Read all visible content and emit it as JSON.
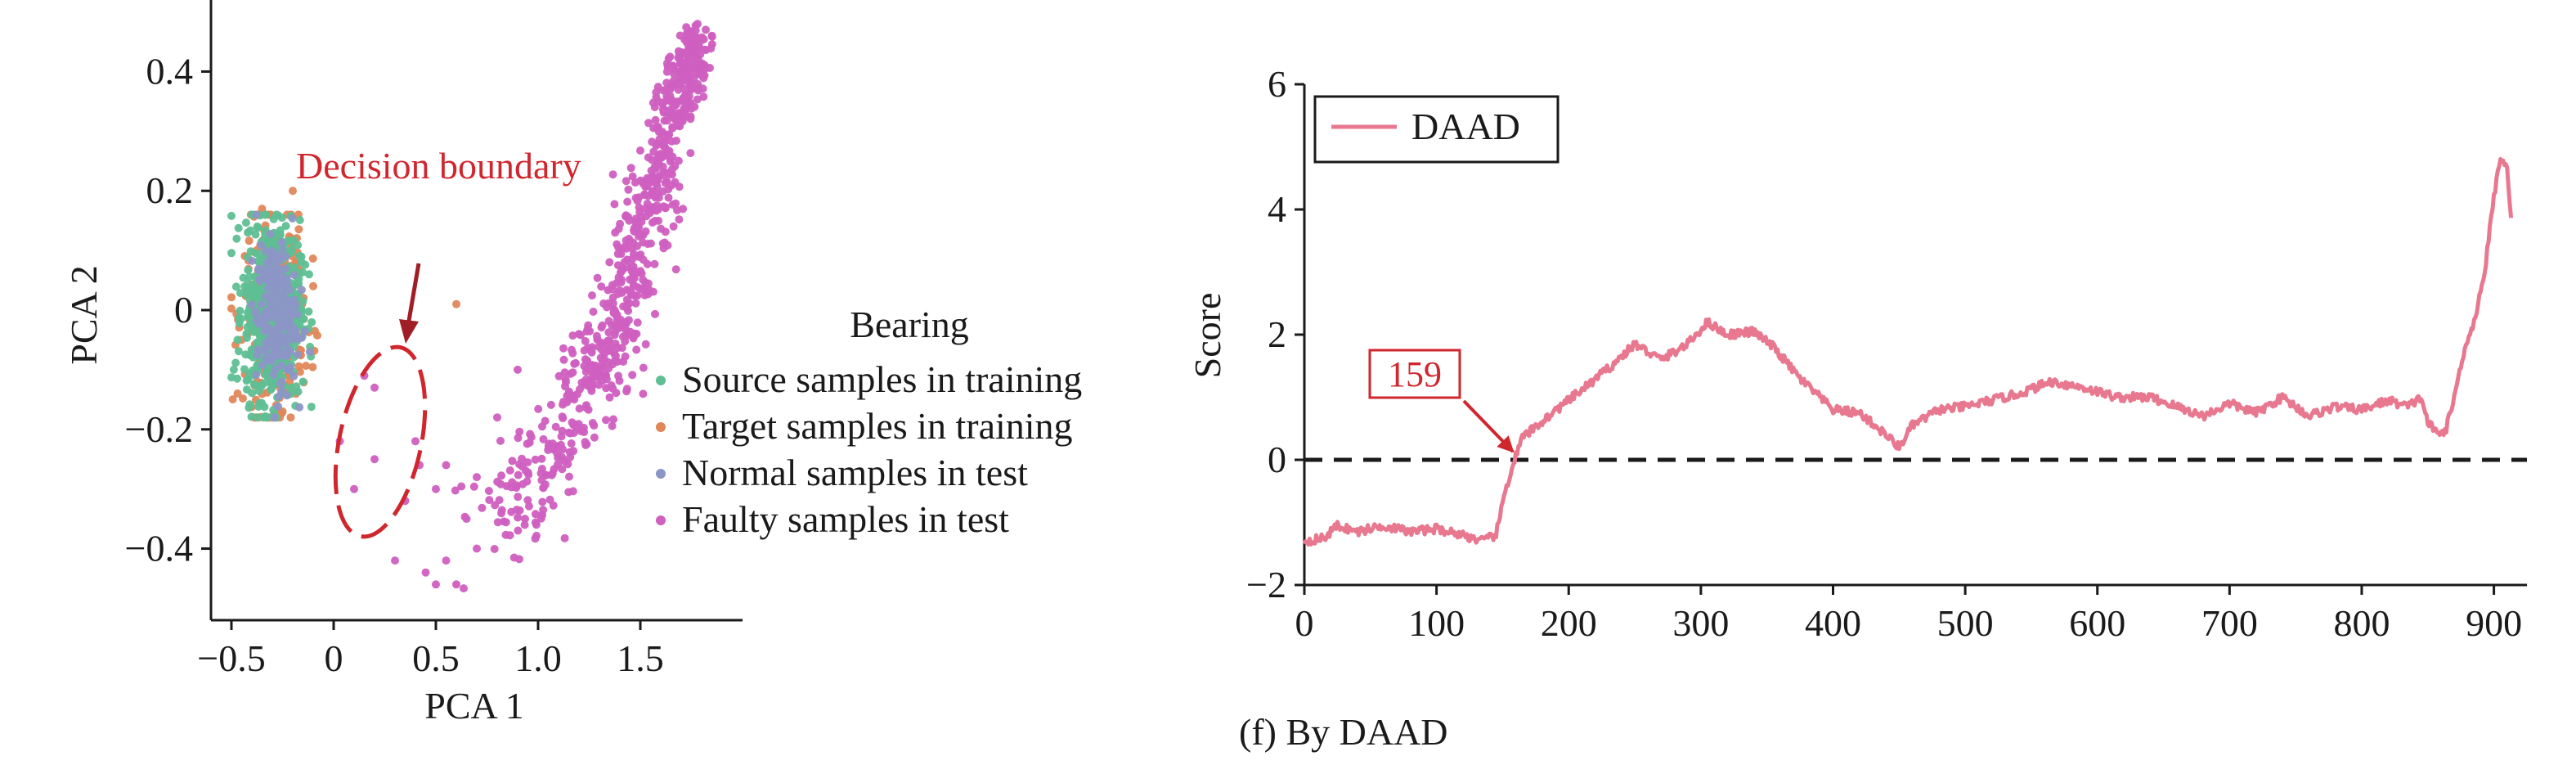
{
  "caption": "(f) By DAAD",
  "colors": {
    "source": "#5fbf94",
    "target": "#e0875a",
    "normal": "#8c96c6",
    "faulty": "#cf5fc0",
    "annotation": "#d0272e",
    "arrow": "#a01e25",
    "daad": "#e8788f",
    "axis": "#1a1a1a"
  },
  "chart_data": [
    {
      "type": "scatter",
      "xlabel": "PCA 1",
      "ylabel": "PCA 2",
      "xlim": [
        -0.6,
        2.0
      ],
      "ylim": [
        -0.52,
        0.52
      ],
      "xticks": [
        -0.5,
        0,
        0.5,
        1.0,
        1.5
      ],
      "xtick_labels": [
        "−0.5",
        "0",
        "0.5",
        "1.0",
        "1.5"
      ],
      "yticks": [
        -0.4,
        -0.2,
        0,
        0.2,
        0.4
      ],
      "ytick_labels": [
        "−0.4",
        "−0.2",
        "0",
        "0.2",
        "0.4"
      ],
      "legend": {
        "title": "Bearing",
        "placement": "right",
        "entries": [
          "Source samples in training",
          "Target samples in training",
          "Normal samples in test",
          "Faulty samples in test"
        ]
      },
      "annotation": {
        "text": "Decision boundary"
      },
      "series": [
        {
          "name": "Source samples in training",
          "cluster": {
            "center": [
              -0.3,
              0.0
            ],
            "spread": [
              0.075,
              0.075
            ],
            "count": 650
          },
          "points": [
            [
              -0.42,
              0.13
            ],
            [
              -0.15,
              -0.12
            ],
            [
              -0.47,
              -0.05
            ],
            [
              -0.12,
              0.06
            ]
          ]
        },
        {
          "name": "Target samples in training",
          "cluster": {
            "center": [
              -0.29,
              -0.01
            ],
            "spread": [
              0.08,
              0.08
            ],
            "count": 380
          },
          "points": [
            [
              -0.35,
              0.17
            ],
            [
              -0.2,
              0.2
            ],
            [
              -0.47,
              -0.14
            ],
            [
              -0.25,
              -0.17
            ],
            [
              -0.1,
              0.04
            ],
            [
              0.6,
              0.01
            ]
          ]
        },
        {
          "name": "Normal samples in test",
          "cluster": {
            "center": [
              -0.28,
              -0.01
            ],
            "spread": [
              0.055,
              0.06
            ],
            "count": 220
          },
          "points": []
        },
        {
          "name": "Faulty samples in test",
          "trend": [
            [
              0.75,
              -0.36
            ],
            [
              0.95,
              -0.3
            ],
            [
              1.1,
              -0.22
            ],
            [
              1.25,
              -0.12
            ],
            [
              1.35,
              -0.05
            ],
            [
              1.45,
              0.05
            ],
            [
              1.55,
              0.17
            ],
            [
              1.62,
              0.28
            ],
            [
              1.7,
              0.38
            ],
            [
              1.78,
              0.46
            ]
          ],
          "trend_spread": [
            0.08,
            0.035
          ],
          "count": 760,
          "points": [
            [
              0.03,
              -0.22
            ],
            [
              0.1,
              -0.3
            ],
            [
              0.2,
              -0.25
            ],
            [
              0.35,
              -0.32
            ],
            [
              0.42,
              -0.26
            ],
            [
              0.5,
              -0.3
            ],
            [
              0.3,
              -0.42
            ],
            [
              0.45,
              -0.44
            ],
            [
              0.5,
              -0.46
            ],
            [
              0.6,
              -0.46
            ],
            [
              0.55,
              -0.42
            ],
            [
              0.65,
              -0.35
            ],
            [
              0.7,
              -0.4
            ],
            [
              0.2,
              -0.13
            ],
            [
              0.15,
              -0.11
            ],
            [
              0.4,
              -0.22
            ],
            [
              0.55,
              -0.26
            ],
            [
              0.7,
              -0.28
            ],
            [
              0.8,
              -0.18
            ],
            [
              0.9,
              -0.1
            ],
            [
              1.2,
              -0.04
            ],
            [
              1.78,
              0.48
            ],
            [
              1.82,
              0.47
            ],
            [
              1.85,
              0.46
            ]
          ]
        }
      ]
    },
    {
      "type": "line",
      "xlabel": "",
      "ylabel": "Score",
      "xlim": [
        0,
        925
      ],
      "ylim": [
        -2,
        6
      ],
      "xticks": [
        0,
        100,
        200,
        300,
        400,
        500,
        600,
        700,
        800,
        900
      ],
      "xtick_labels": [
        "0",
        "100",
        "200",
        "300",
        "400",
        "500",
        "600",
        "700",
        "800",
        "900"
      ],
      "yticks": [
        -2,
        0,
        2,
        4,
        6
      ],
      "ytick_labels": [
        "−2",
        "0",
        "2",
        "4",
        "6"
      ],
      "legend": {
        "placement": "top-left",
        "entries": [
          "DAAD"
        ]
      },
      "threshold": 0,
      "annotation": {
        "text": "159",
        "x": 159,
        "y": 0
      },
      "series": [
        {
          "name": "DAAD",
          "keypoints": [
            [
              0,
              -1.3
            ],
            [
              15,
              -1.25
            ],
            [
              25,
              -1.05
            ],
            [
              40,
              -1.15
            ],
            [
              60,
              -1.05
            ],
            [
              80,
              -1.15
            ],
            [
              100,
              -1.1
            ],
            [
              120,
              -1.2
            ],
            [
              135,
              -1.3
            ],
            [
              145,
              -1.2
            ],
            [
              152,
              -0.5
            ],
            [
              159,
              0.0
            ],
            [
              165,
              0.35
            ],
            [
              185,
              0.7
            ],
            [
              200,
              0.95
            ],
            [
              215,
              1.2
            ],
            [
              235,
              1.55
            ],
            [
              250,
              1.85
            ],
            [
              270,
              1.6
            ],
            [
              290,
              1.85
            ],
            [
              305,
              2.2
            ],
            [
              320,
              2.0
            ],
            [
              340,
              2.05
            ],
            [
              355,
              1.8
            ],
            [
              375,
              1.3
            ],
            [
              390,
              1.0
            ],
            [
              400,
              0.8
            ],
            [
              420,
              0.75
            ],
            [
              440,
              0.4
            ],
            [
              450,
              0.2
            ],
            [
              460,
              0.55
            ],
            [
              480,
              0.8
            ],
            [
              500,
              0.85
            ],
            [
              520,
              0.95
            ],
            [
              540,
              1.05
            ],
            [
              565,
              1.25
            ],
            [
              590,
              1.15
            ],
            [
              615,
              1.0
            ],
            [
              640,
              1.0
            ],
            [
              660,
              0.85
            ],
            [
              680,
              0.7
            ],
            [
              700,
              0.9
            ],
            [
              720,
              0.75
            ],
            [
              740,
              1.0
            ],
            [
              760,
              0.7
            ],
            [
              780,
              0.85
            ],
            [
              800,
              0.8
            ],
            [
              820,
              0.95
            ],
            [
              835,
              0.85
            ],
            [
              845,
              1.0
            ],
            [
              850,
              0.6
            ],
            [
              858,
              0.4
            ],
            [
              864,
              0.5
            ],
            [
              870,
              1.0
            ],
            [
              878,
              1.8
            ],
            [
              885,
              2.2
            ],
            [
              893,
              3.0
            ],
            [
              900,
              4.2
            ],
            [
              905,
              4.85
            ],
            [
              910,
              4.7
            ],
            [
              913,
              3.8
            ]
          ]
        }
      ]
    }
  ]
}
